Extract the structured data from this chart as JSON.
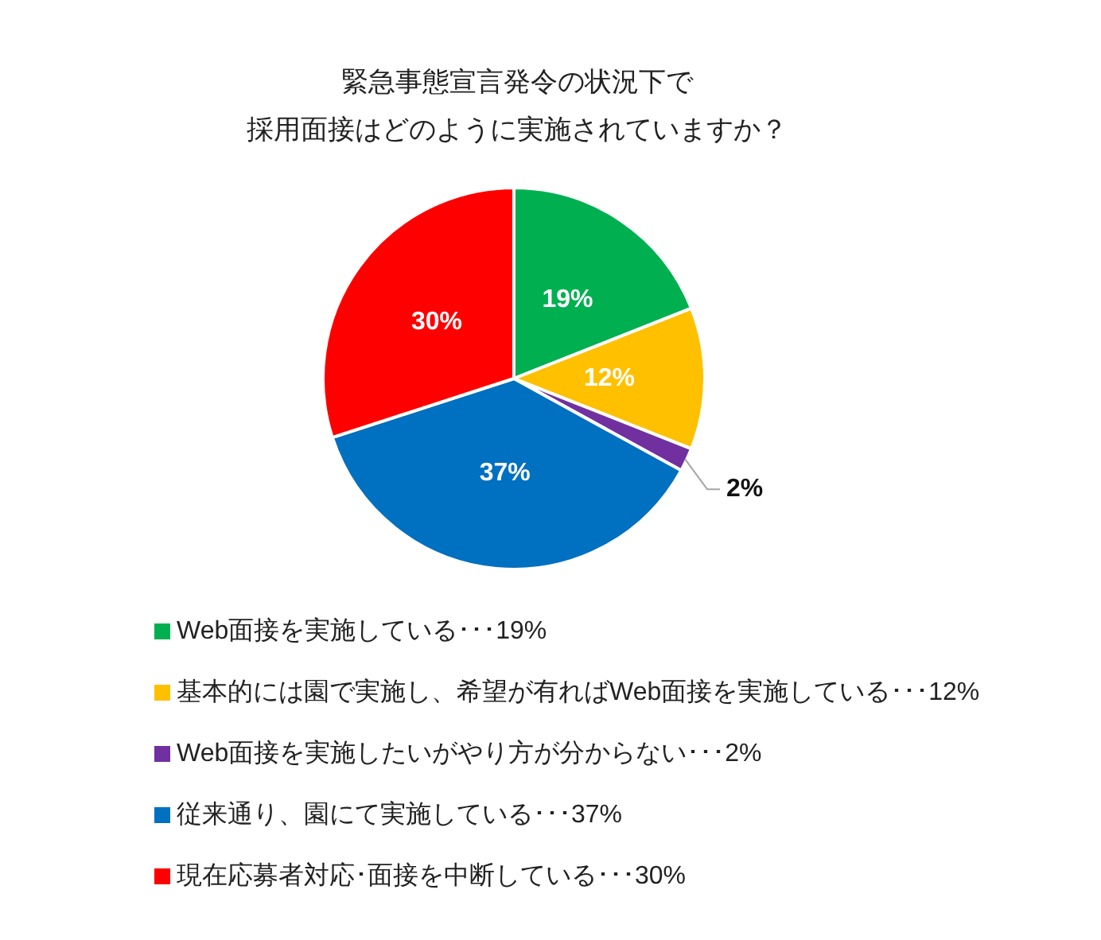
{
  "chart_data": {
    "type": "pie",
    "title": "緊急事態宣言発令の状況下で採用面接はどのように実施されていますか？",
    "categories": [
      "Web面接を実施している･･･19%",
      "基本的には園で実施し、希望が有ればWeb面接を実施している･･･12%",
      "Web面接を実施したいがやり方が分からない･･･2%",
      "従来通り、園にて実施している･･･37%",
      "現在応募者対応･面接を中断している･･･30%"
    ],
    "values": [
      19,
      12,
      2,
      37,
      30
    ],
    "colors": [
      "#00b050",
      "#ffc000",
      "#7030a0",
      "#0070c0",
      "#ff0000"
    ],
    "value_labels": [
      "19%",
      "12%",
      "2%",
      "37%",
      "30%"
    ],
    "legend": "bottom"
  }
}
